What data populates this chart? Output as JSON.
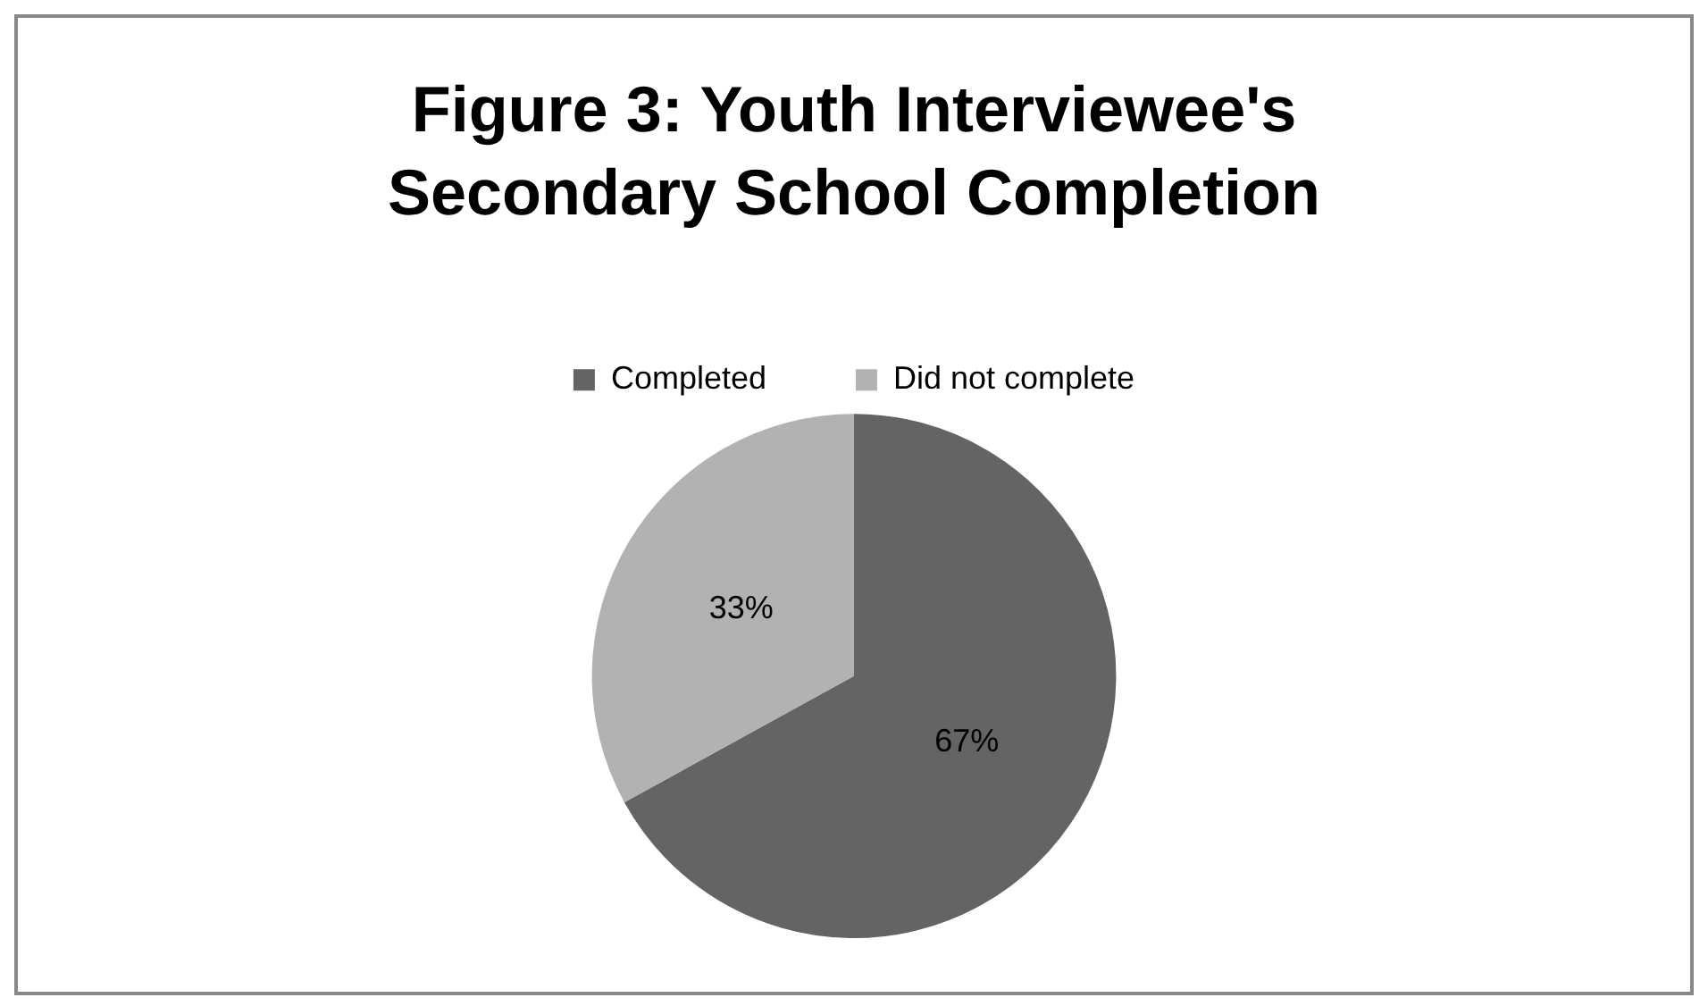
{
  "chart_data": {
    "type": "pie",
    "title": "Figure 3: Youth Interviewee's Secondary School Completion",
    "categories": [
      "Completed",
      "Did not complete"
    ],
    "values": [
      67,
      33
    ],
    "colors": [
      "#646464",
      "#b2b2b2"
    ],
    "value_labels": [
      "67%",
      "33%"
    ],
    "legend": "top"
  }
}
